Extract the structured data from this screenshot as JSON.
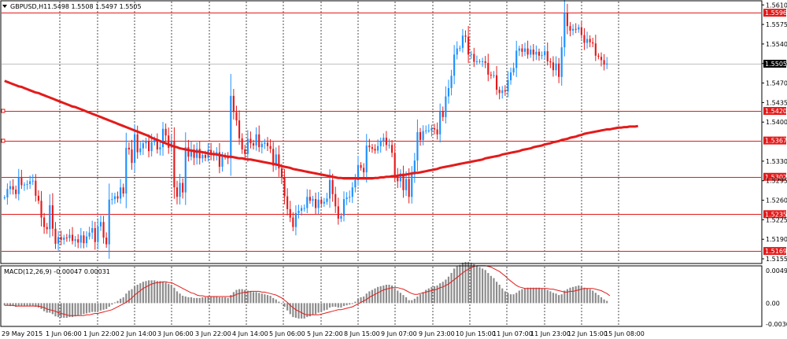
{
  "header": {
    "symbol_label": "GBPUSD,H1",
    "ohlc": "1.5498 1.5508 1.5497 1.5505"
  },
  "indicator": {
    "label": "MACD(12,26,9) -0.00047 0.00031"
  },
  "colors": {
    "background": "#ffffff",
    "bull": "#1e90ff",
    "bear": "#e41a1c",
    "ma": "#e31b1b",
    "hline": "#e31b1b",
    "grid": "#000000",
    "macd_hist": "#8c8c8c",
    "macd_signal": "#e31b1b",
    "price_marker_bg": "#000000"
  },
  "price_axis": {
    "ticks": [
      "1.5610",
      "1.5596",
      "1.5575",
      "1.5540",
      "1.5505",
      "1.5470",
      "1.5435",
      "1.5420",
      "1.5400",
      "1.5367",
      "1.5330",
      "1.5302",
      "1.5295",
      "1.5260",
      "1.5235",
      "1.5225",
      "1.5190",
      "1.5169",
      "1.5155"
    ],
    "range": [
      1.5148,
      1.5616
    ]
  },
  "macd_axis": {
    "ticks": [
      "0.00496",
      "0.00",
      "-0.00306"
    ],
    "range": [
      -0.00306,
      0.00496
    ]
  },
  "current_price": "1.5505",
  "levels": [
    {
      "label": "1.5596",
      "value": 1.5596
    },
    {
      "label": "1.5420",
      "value": 1.542
    },
    {
      "label": "1.5367",
      "value": 1.5367
    },
    {
      "label": "1.5302",
      "value": 1.5302
    },
    {
      "label": "1.5235",
      "value": 1.5235
    },
    {
      "label": "1.5169",
      "value": 1.5169
    }
  ],
  "time_axis": {
    "labels": [
      "29 May 2015",
      "1 Jun 06:00",
      "1 Jun 22:00",
      "2 Jun 14:00",
      "3 Jun 06:00",
      "3 Jun 22:00",
      "4 Jun 14:00",
      "5 Jun 06:00",
      "5 Jun 22:00",
      "8 Jun 15:00",
      "9 Jun 07:00",
      "9 Jun 23:00",
      "10 Jun 15:00",
      "11 Jun 07:00",
      "11 Jun 23:00",
      "12 Jun 15:00",
      "15 Jun 08:00"
    ]
  },
  "chart_data": {
    "type": "line",
    "title": "GBPUSD,H1",
    "series": [
      {
        "name": "close",
        "values": [
          1.5265,
          1.528,
          1.5285,
          1.5279,
          1.5271,
          1.5301,
          1.5287,
          1.5288,
          1.5289,
          1.5294,
          1.5295,
          1.5268,
          1.5259,
          1.5229,
          1.5212,
          1.5208,
          1.5251,
          1.5209,
          1.5182,
          1.5194,
          1.5189,
          1.5193,
          1.5192,
          1.5198,
          1.5187,
          1.519,
          1.5184,
          1.5197,
          1.5183,
          1.5195,
          1.5202,
          1.521,
          1.5185,
          1.5213,
          1.5221,
          1.5193,
          1.5181,
          1.5261,
          1.5262,
          1.5267,
          1.5263,
          1.5283,
          1.5272,
          1.5354,
          1.5351,
          1.5327,
          1.5378,
          1.5346,
          1.5353,
          1.5362,
          1.5365,
          1.5348,
          1.5364,
          1.5368,
          1.5351,
          1.5355,
          1.5388,
          1.5376,
          1.5354,
          1.5365,
          1.5283,
          1.5266,
          1.5291,
          1.5274,
          1.5355,
          1.5338,
          1.5351,
          1.5336,
          1.5352,
          1.5335,
          1.5341,
          1.5336,
          1.535,
          1.5343,
          1.534,
          1.5346,
          1.532,
          1.5338,
          1.5337,
          1.5335,
          1.5447,
          1.5418,
          1.5403,
          1.5371,
          1.5351,
          1.5343,
          1.537,
          1.5362,
          1.5358,
          1.5378,
          1.5355,
          1.5361,
          1.5363,
          1.5357,
          1.5352,
          1.5322,
          1.5342,
          1.5317,
          1.5301,
          1.5267,
          1.5244,
          1.5229,
          1.5212,
          1.5237,
          1.5241,
          1.5246,
          1.5246,
          1.5266,
          1.5259,
          1.5262,
          1.5246,
          1.5261,
          1.5254,
          1.5257,
          1.5263,
          1.5296,
          1.5271,
          1.5249,
          1.5227,
          1.5232,
          1.5262,
          1.5265,
          1.5266,
          1.5283,
          1.5296,
          1.5323,
          1.5318,
          1.531,
          1.5358,
          1.5355,
          1.5352,
          1.5349,
          1.5357,
          1.5366,
          1.5372,
          1.5359,
          1.5359,
          1.5345,
          1.5305,
          1.5294,
          1.5308,
          1.5278,
          1.5298,
          1.5266,
          1.5306,
          1.5331,
          1.5382,
          1.5368,
          1.5384,
          1.5385,
          1.5385,
          1.5389,
          1.5387,
          1.5378,
          1.5419,
          1.5409,
          1.5446,
          1.5461,
          1.5483,
          1.5521,
          1.5532,
          1.5533,
          1.5555,
          1.5553,
          1.5521,
          1.5522,
          1.5508,
          1.5509,
          1.5509,
          1.5509,
          1.5506,
          1.5485,
          1.5484,
          1.5484,
          1.5458,
          1.5452,
          1.5457,
          1.5455,
          1.5475,
          1.5489,
          1.5497,
          1.5528,
          1.5532,
          1.5526,
          1.5532,
          1.5521,
          1.553,
          1.5521,
          1.5526,
          1.5519,
          1.552,
          1.5527,
          1.5509,
          1.5507,
          1.5493,
          1.5505,
          1.5481,
          1.5534,
          1.5595,
          1.5572,
          1.5564,
          1.5567,
          1.5566,
          1.557,
          1.5556,
          1.5542,
          1.5549,
          1.5543,
          1.5541,
          1.5519,
          1.5517,
          1.5511,
          1.5503,
          1.5505
        ]
      }
    ],
    "ma_series": [
      1.5474,
      1.5472,
      1.547,
      1.5468,
      1.5466,
      1.5464,
      1.5463,
      1.5461,
      1.5459,
      1.5457,
      1.5455,
      1.5453,
      1.5452,
      1.545,
      1.5448,
      1.5446,
      1.5444,
      1.5442,
      1.544,
      1.5438,
      1.5436,
      1.5434,
      1.5432,
      1.543,
      1.5428,
      1.5427,
      1.5425,
      1.5423,
      1.5421,
      1.5419,
      1.5417,
      1.5415,
      1.5413,
      1.5411,
      1.5409,
      1.5407,
      1.5405,
      1.5403,
      1.5401,
      1.5399,
      1.5397,
      1.5395,
      1.5393,
      1.5391,
      1.5389,
      1.5387,
      1.5385,
      1.5383,
      1.5381,
      1.5379,
      1.5377,
      1.5375,
      1.5372,
      1.537,
      1.5368,
      1.5366,
      1.5364,
      1.5362,
      1.536,
      1.5358,
      1.5356,
      1.5355,
      1.5353,
      1.5352,
      1.5351,
      1.535,
      1.5349,
      1.5348,
      1.5347,
      1.5347,
      1.5346,
      1.5345,
      1.5344,
      1.5343,
      1.5343,
      1.5342,
      1.5341,
      1.534,
      1.5339,
      1.5338,
      1.5338,
      1.5337,
      1.5336,
      1.5335,
      1.5335,
      1.5334,
      1.5333,
      1.5333,
      1.5332,
      1.5331,
      1.533,
      1.5329,
      1.5328,
      1.5327,
      1.5326,
      1.5325,
      1.5324,
      1.5323,
      1.5321,
      1.532,
      1.5319,
      1.5318,
      1.5316,
      1.5315,
      1.5314,
      1.5313,
      1.5312,
      1.5311,
      1.531,
      1.5309,
      1.5308,
      1.5307,
      1.5306,
      1.5305,
      1.5304,
      1.5303,
      1.5302,
      1.5301,
      1.53,
      1.53,
      1.5299,
      1.5299,
      1.5299,
      1.5299,
      1.5299,
      1.5299,
      1.5299,
      1.5299,
      1.5299,
      1.5299,
      1.5299,
      1.53,
      1.53,
      1.5301,
      1.5301,
      1.5302,
      1.5302,
      1.5303,
      1.5303,
      1.5304,
      1.5305,
      1.5305,
      1.5306,
      1.5307,
      1.5308,
      1.5309,
      1.5309,
      1.531,
      1.5311,
      1.5312,
      1.5313,
      1.5314,
      1.5315,
      1.5316,
      1.5318,
      1.5319,
      1.532,
      1.5321,
      1.5322,
      1.5323,
      1.5324,
      1.5325,
      1.5326,
      1.5327,
      1.5328,
      1.5329,
      1.533,
      1.5331,
      1.5332,
      1.5333,
      1.5335,
      1.5336,
      1.5337,
      1.5338,
      1.5339,
      1.534,
      1.5342,
      1.5343,
      1.5344,
      1.5345,
      1.5346,
      1.5347,
      1.5348,
      1.535,
      1.5351,
      1.5352,
      1.5353,
      1.5355,
      1.5356,
      1.5357,
      1.5358,
      1.536,
      1.5361,
      1.5362,
      1.5364,
      1.5365,
      1.5366,
      1.5368,
      1.5369,
      1.537,
      1.5372,
      1.5373,
      1.5374,
      1.5376,
      1.5377,
      1.5379,
      1.538,
      1.5381,
      1.5382,
      1.5383,
      1.5384,
      1.5385,
      1.5386,
      1.5387,
      1.5387,
      1.5388,
      1.5389,
      1.539,
      1.539,
      1.5391,
      1.5391,
      1.5392,
      1.5392,
      1.5392,
      1.5393
    ],
    "macd_hist": [
      -0.0003,
      -0.0003,
      -0.0004,
      -0.0004,
      -0.0005,
      -0.0004,
      -0.0004,
      -0.0004,
      -0.0004,
      -0.0004,
      -0.0004,
      -0.0005,
      -0.0006,
      -0.0008,
      -0.0011,
      -0.0013,
      -0.0013,
      -0.0015,
      -0.0018,
      -0.0019,
      -0.002,
      -0.002,
      -0.002,
      -0.0019,
      -0.0019,
      -0.0018,
      -0.0017,
      -0.0016,
      -0.0015,
      -0.0014,
      -0.0013,
      -0.0012,
      -0.0012,
      -0.0011,
      -0.001,
      -0.0009,
      -0.0008,
      -0.0005,
      -0.0002,
      0.0001,
      0.0003,
      0.0006,
      0.0008,
      0.0013,
      0.0017,
      0.0019,
      0.0023,
      0.0025,
      0.0027,
      0.0029,
      0.003,
      0.0031,
      0.0031,
      0.0031,
      0.003,
      0.003,
      0.0029,
      0.0028,
      0.0026,
      0.0025,
      0.0021,
      0.0016,
      0.0013,
      0.001,
      0.0009,
      0.0008,
      0.0008,
      0.0007,
      0.0007,
      0.0007,
      0.0008,
      0.0008,
      0.0009,
      0.0009,
      0.0009,
      0.0009,
      0.0008,
      0.0008,
      0.0008,
      0.0007,
      0.0011,
      0.0015,
      0.0018,
      0.0019,
      0.0019,
      0.0018,
      0.0017,
      0.0016,
      0.0015,
      0.0015,
      0.0014,
      0.0013,
      0.0012,
      0.0011,
      0.001,
      0.0007,
      0.0005,
      0.0002,
      -0.0001,
      -0.0005,
      -0.001,
      -0.0015,
      -0.0019,
      -0.002,
      -0.0021,
      -0.0021,
      -0.0021,
      -0.0019,
      -0.0018,
      -0.0016,
      -0.0015,
      -0.0013,
      -0.0012,
      -0.001,
      -0.0009,
      -0.0006,
      -0.0005,
      -0.0005,
      -0.0006,
      -0.0006,
      -0.0004,
      -0.0003,
      -0.0002,
      0.0,
      0.0002,
      0.0006,
      0.0008,
      0.0009,
      0.0013,
      0.0016,
      0.0018,
      0.002,
      0.0022,
      0.0023,
      0.0024,
      0.0025,
      0.0025,
      0.0024,
      0.002,
      0.0017,
      0.0014,
      0.0011,
      0.0008,
      0.0004,
      0.0004,
      0.0006,
      0.0009,
      0.0012,
      0.0015,
      0.0018,
      0.002,
      0.0022,
      0.0023,
      0.0024,
      0.0027,
      0.0029,
      0.0032,
      0.0036,
      0.0041,
      0.0047,
      0.005,
      0.0052,
      0.0055,
      0.0056,
      0.0056,
      0.0055,
      0.0053,
      0.0051,
      0.0049,
      0.0047,
      0.0045,
      0.0041,
      0.0037,
      0.0034,
      0.0029,
      0.0025,
      0.002,
      0.0016,
      0.0014,
      0.0012,
      0.0012,
      0.0014,
      0.0017,
      0.0019,
      0.002,
      0.0021,
      0.0021,
      0.0021,
      0.0021,
      0.0021,
      0.002,
      0.002,
      0.0018,
      0.0016,
      0.0014,
      0.0013,
      0.0011,
      0.0012,
      0.0017,
      0.0019,
      0.0021,
      0.0022,
      0.0023,
      0.0024,
      0.0023,
      0.0021,
      0.002,
      0.0019,
      0.0017,
      0.0014,
      0.0011,
      0.0008,
      0.0005,
      0.0003
    ],
    "macd_signal": [
      -0.0003,
      -0.0003,
      -0.0003,
      -0.0003,
      -0.0004,
      -0.0004,
      -0.0004,
      -0.0004,
      -0.0004,
      -0.0004,
      -0.0004,
      -0.0004,
      -0.0004,
      -0.0005,
      -0.0006,
      -0.0008,
      -0.0009,
      -0.001,
      -0.0011,
      -0.0013,
      -0.0014,
      -0.0015,
      -0.0016,
      -0.0017,
      -0.0017,
      -0.0017,
      -0.0017,
      -0.0017,
      -0.0017,
      -0.0016,
      -0.0016,
      -0.0015,
      -0.0014,
      -0.0014,
      -0.0013,
      -0.0012,
      -0.0011,
      -0.001,
      -0.0009,
      -0.0007,
      -0.0005,
      -0.0003,
      -0.0001,
      0.0001,
      0.0004,
      0.0007,
      0.0011,
      0.0014,
      0.0017,
      0.002,
      0.0022,
      0.0024,
      0.0026,
      0.0027,
      0.0028,
      0.0028,
      0.0029,
      0.0029,
      0.0028,
      0.0028,
      0.0026,
      0.0024,
      0.0022,
      0.002,
      0.0018,
      0.0016,
      0.0014,
      0.0013,
      0.0011,
      0.001,
      0.001,
      0.0009,
      0.0009,
      0.0009,
      0.0009,
      0.0009,
      0.0009,
      0.0009,
      0.0009,
      0.0009,
      0.0009,
      0.001,
      0.0012,
      0.0013,
      0.0014,
      0.0015,
      0.0015,
      0.0016,
      0.0016,
      0.0016,
      0.0016,
      0.0015,
      0.0015,
      0.0014,
      0.0013,
      0.0012,
      0.0011,
      0.0009,
      0.0007,
      0.0004,
      0.0001,
      -0.0003,
      -0.0006,
      -0.0009,
      -0.0011,
      -0.0013,
      -0.0015,
      -0.0016,
      -0.0016,
      -0.0016,
      -0.0016,
      -0.0016,
      -0.0015,
      -0.0014,
      -0.0013,
      -0.0012,
      -0.0011,
      -0.001,
      -0.0009,
      -0.0009,
      -0.0008,
      -0.0007,
      -0.0006,
      -0.0005,
      -0.0003,
      -0.0001,
      0.0001,
      0.0003,
      0.0005,
      0.0008,
      0.001,
      0.0012,
      0.0014,
      0.0016,
      0.0018,
      0.0019,
      0.002,
      0.0021,
      0.0021,
      0.0021,
      0.002,
      0.0019,
      0.0017,
      0.0015,
      0.0013,
      0.0012,
      0.0012,
      0.0013,
      0.0014,
      0.0015,
      0.0016,
      0.0017,
      0.0018,
      0.0019,
      0.0021,
      0.0022,
      0.0024,
      0.0026,
      0.0029,
      0.0032,
      0.0035,
      0.0038,
      0.0041,
      0.0044,
      0.0046,
      0.0048,
      0.005,
      0.0051,
      0.0051,
      0.0051,
      0.0051,
      0.005,
      0.0049,
      0.0047,
      0.0045,
      0.0043,
      0.004,
      0.0037,
      0.0033,
      0.003,
      0.0027,
      0.0024,
      0.0022,
      0.0021,
      0.002,
      0.002,
      0.002,
      0.002,
      0.002,
      0.002,
      0.002,
      0.002,
      0.002,
      0.0019,
      0.0019,
      0.0018,
      0.0017,
      0.0016,
      0.0015,
      0.0015,
      0.0016,
      0.0016,
      0.0017,
      0.0018,
      0.0019,
      0.002,
      0.002,
      0.002,
      0.002,
      0.0019,
      0.0018,
      0.0017,
      0.0015,
      0.0013,
      0.001
    ],
    "ylim": [
      1.5148,
      1.5616
    ]
  }
}
